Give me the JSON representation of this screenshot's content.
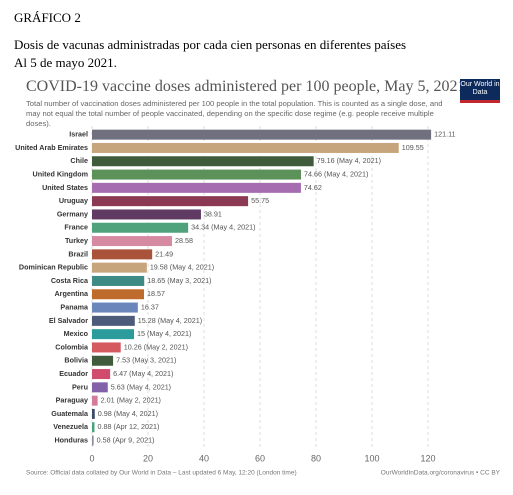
{
  "header": {
    "label": "GRÁFICO 2",
    "title": "Dosis de vacunas administradas por cada cien personas en diferentes países",
    "date": "Al 5 de mayo 2021."
  },
  "logo": "Our World in Data",
  "chart_data": {
    "type": "bar",
    "orientation": "horizontal",
    "title": "COVID-19 vaccine doses administered per 100 people, May 5, 2021",
    "subtitle": "Total number of vaccination doses administered per 100 people in the total population. This is counted as a single dose, and may not equal the total number of people vaccinated, depending on the specific dose regime (e.g. people receive multiple doses).",
    "categories": [
      "Israel",
      "United Arab Emirates",
      "Chile",
      "United Kingdom",
      "United States",
      "Uruguay",
      "Germany",
      "France",
      "Turkey",
      "Brazil",
      "Dominican Republic",
      "Costa Rica",
      "Argentina",
      "Panama",
      "El Salvador",
      "Mexico",
      "Colombia",
      "Bolivia",
      "Ecuador",
      "Peru",
      "Paraguay",
      "Guatemala",
      "Venezuela",
      "Honduras"
    ],
    "values": [
      121.11,
      109.55,
      79.16,
      74.66,
      74.62,
      55.75,
      38.91,
      34.34,
      28.58,
      21.49,
      19.58,
      18.65,
      18.57,
      16.37,
      15.28,
      15,
      10.26,
      7.53,
      6.47,
      5.63,
      2.01,
      0.98,
      0.88,
      0.58
    ],
    "value_labels": [
      "121.11",
      "109.55",
      "79.16 (May 4, 2021)",
      "74.66 (May 4, 2021)",
      "74.62",
      "55.75",
      "38.91",
      "34.34 (May 4, 2021)",
      "28.58",
      "21.49",
      "19.58 (May 4, 2021)",
      "18.65 (May 3, 2021)",
      "18.57",
      "16.37",
      "15.28 (May 4, 2021)",
      "15 (May 4, 2021)",
      "10.26 (May 2, 2021)",
      "7.53 (May 3, 2021)",
      "6.47 (May 4, 2021)",
      "5.63 (May 4, 2021)",
      "2.01 (May 2, 2021)",
      "0.98 (May 4, 2021)",
      "0.88 (Apr 12, 2021)",
      "0.58 (Apr 9, 2021)"
    ],
    "colors": [
      "#70707e",
      "#c6a57c",
      "#3f5b3c",
      "#5c9259",
      "#a66cb0",
      "#8c3a54",
      "#5f3b64",
      "#4fa27c",
      "#d58aa2",
      "#a8533a",
      "#c6a57c",
      "#3e8a84",
      "#c06b2e",
      "#6a86ba",
      "#4b5b79",
      "#2c9b9b",
      "#d45a5f",
      "#3f5b3c",
      "#d04b6c",
      "#8162aa",
      "#d27b9a",
      "#3b4b6b",
      "#4aa27c",
      "#8b8b9b"
    ],
    "xlim": [
      0,
      120
    ],
    "xticks": [
      0,
      20,
      40,
      60,
      80,
      100,
      120
    ],
    "grid": true,
    "source": "Source: Official data collated by Our World in Data – Last updated 6 May, 12:20 (London time)",
    "credit": "OurWorldInData.org/coronavirus • CC BY"
  }
}
